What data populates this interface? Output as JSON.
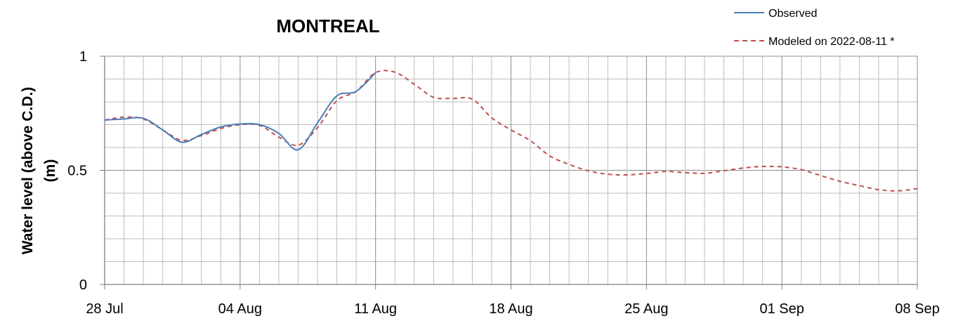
{
  "chart_data": {
    "type": "line",
    "title": "MONTREAL",
    "xlabel": "",
    "ylabel": "Water level (above C.D.) (m)",
    "ylabel_lines": [
      "Water level (above C.D.)",
      "(m)"
    ],
    "ylim": [
      0,
      1
    ],
    "y_ticks": [
      {
        "v": 0,
        "label": "0"
      },
      {
        "v": 0.5,
        "label": "0.5"
      },
      {
        "v": 1,
        "label": "1"
      }
    ],
    "x_range": [
      "2022-07-28",
      "2022-09-08"
    ],
    "x_ticks": [
      {
        "date": "2022-07-28",
        "label": "28 Jul"
      },
      {
        "date": "2022-08-04",
        "label": "04 Aug"
      },
      {
        "date": "2022-08-11",
        "label": "11 Aug"
      },
      {
        "date": "2022-08-18",
        "label": "18 Aug"
      },
      {
        "date": "2022-08-25",
        "label": "25 Aug"
      },
      {
        "date": "2022-09-01",
        "label": "01 Sep"
      },
      {
        "date": "2022-09-08",
        "label": "08 Sep"
      }
    ],
    "grid": "on (daily vertical, 0.1 m horizontal)",
    "legend_position": "top-right",
    "series": [
      {
        "name": "Observed",
        "color": "#4a7ebb",
        "style": "solid",
        "x": [
          "2022-07-28",
          "2022-07-29",
          "2022-07-30",
          "2022-07-31",
          "2022-08-01",
          "2022-08-02",
          "2022-08-03",
          "2022-08-04",
          "2022-08-05",
          "2022-08-06",
          "2022-08-07",
          "2022-08-08",
          "2022-08-09",
          "2022-08-10",
          "2022-08-11"
        ],
        "y": [
          0.72,
          0.725,
          0.728,
          0.677,
          0.623,
          0.657,
          0.69,
          0.703,
          0.7,
          0.662,
          0.59,
          0.708,
          0.826,
          0.846,
          0.928
        ]
      },
      {
        "name": "Modeled on 2022-08-11 *",
        "color": "#c0504d",
        "style": "dashed",
        "x": [
          "2022-07-28",
          "2022-07-29",
          "2022-07-30",
          "2022-07-31",
          "2022-08-01",
          "2022-08-02",
          "2022-08-03",
          "2022-08-04",
          "2022-08-05",
          "2022-08-06",
          "2022-08-07",
          "2022-08-08",
          "2022-08-09",
          "2022-08-10",
          "2022-08-11",
          "2022-08-12",
          "2022-08-13",
          "2022-08-14",
          "2022-08-15",
          "2022-08-16",
          "2022-08-17",
          "2022-08-18",
          "2022-08-19",
          "2022-08-20",
          "2022-08-21",
          "2022-08-22",
          "2022-08-23",
          "2022-08-24",
          "2022-08-25",
          "2022-08-26",
          "2022-08-27",
          "2022-08-28",
          "2022-08-29",
          "2022-08-30",
          "2022-08-31",
          "2022-09-01",
          "2022-09-02",
          "2022-09-03",
          "2022-09-04",
          "2022-09-05",
          "2022-09-06",
          "2022-09-07",
          "2022-09-08"
        ],
        "y": [
          0.72,
          0.733,
          0.725,
          0.677,
          0.631,
          0.652,
          0.683,
          0.7,
          0.697,
          0.646,
          0.61,
          0.687,
          0.805,
          0.846,
          0.928,
          0.93,
          0.877,
          0.82,
          0.815,
          0.812,
          0.73,
          0.677,
          0.63,
          0.563,
          0.526,
          0.498,
          0.483,
          0.48,
          0.486,
          0.495,
          0.49,
          0.487,
          0.498,
          0.51,
          0.517,
          0.515,
          0.503,
          0.477,
          0.452,
          0.433,
          0.415,
          0.41,
          0.42
        ]
      }
    ]
  }
}
